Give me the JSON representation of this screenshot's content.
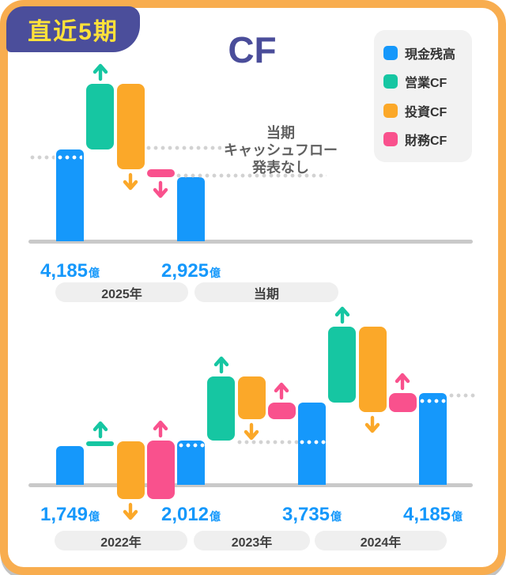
{
  "badge": {
    "label": "直近5期"
  },
  "title": "CF",
  "unit_suffix": "億",
  "colors": {
    "cash": "#1598fb",
    "営業CF": "#16c6a2",
    "投資CF": "#fba829",
    "財務CF": "#f9518d",
    "accent_indigo": "#4b4e9b",
    "badge_text_yellow": "#ffe13a",
    "card_border_orange": "#f8ad4f"
  },
  "legend": {
    "items": [
      {
        "label": "現金残高",
        "color": "#1598fb"
      },
      {
        "label": "営業CF",
        "color": "#16c6a2"
      },
      {
        "label": "投資CF",
        "color": "#fba829"
      },
      {
        "label": "財務CF",
        "color": "#f9518d"
      }
    ]
  },
  "annotation": {
    "lines": [
      "当期",
      "キャッシュフロー",
      "発表なし"
    ]
  },
  "chart_data": [
    {
      "type": "bar",
      "subtype": "waterfall",
      "name": "current-period",
      "unit": "億円",
      "pills": [
        "2025年",
        "当期"
      ],
      "columns": [
        {
          "kind": "cash",
          "label": "2025年",
          "value": 4185,
          "display": "4,185"
        },
        {
          "kind": "flow",
          "series": "営業CF",
          "value": 2990
        },
        {
          "kind": "flow",
          "series": "投資CF",
          "value": -3890
        },
        {
          "kind": "flow",
          "series": "財務CF",
          "value": -360
        },
        {
          "kind": "cash",
          "label": "当期",
          "value": 2925,
          "display": "2,925"
        }
      ]
    },
    {
      "type": "bar",
      "subtype": "waterfall",
      "name": "past-periods",
      "unit": "億円",
      "pills": [
        "2022年",
        "2023年",
        "2024年"
      ],
      "columns": [
        {
          "kind": "cash",
          "label": "2022年",
          "value": 1749,
          "display": "1,749"
        },
        {
          "kind": "flow",
          "series": "営業CF",
          "value": 230
        },
        {
          "kind": "flow",
          "series": "投資CF",
          "value": -2610
        },
        {
          "kind": "flow",
          "series": "財務CF",
          "value": 2643
        },
        {
          "kind": "cash",
          "label": "2023年",
          "value": 2012,
          "display": "2,012"
        },
        {
          "kind": "flow",
          "series": "営業CF",
          "value": 2900
        },
        {
          "kind": "flow",
          "series": "投資CF",
          "value": -1910
        },
        {
          "kind": "flow",
          "series": "財務CF",
          "value": 733
        },
        {
          "kind": "cash",
          "label": "2024年",
          "value": 3735,
          "display": "3,735"
        },
        {
          "kind": "flow",
          "series": "営業CF",
          "value": 3460
        },
        {
          "kind": "flow",
          "series": "投資CF",
          "value": -3870
        },
        {
          "kind": "flow",
          "series": "財務CF",
          "value": 860
        },
        {
          "kind": "cash",
          "label": "",
          "value": 4185,
          "display": "4,185"
        }
      ]
    }
  ]
}
